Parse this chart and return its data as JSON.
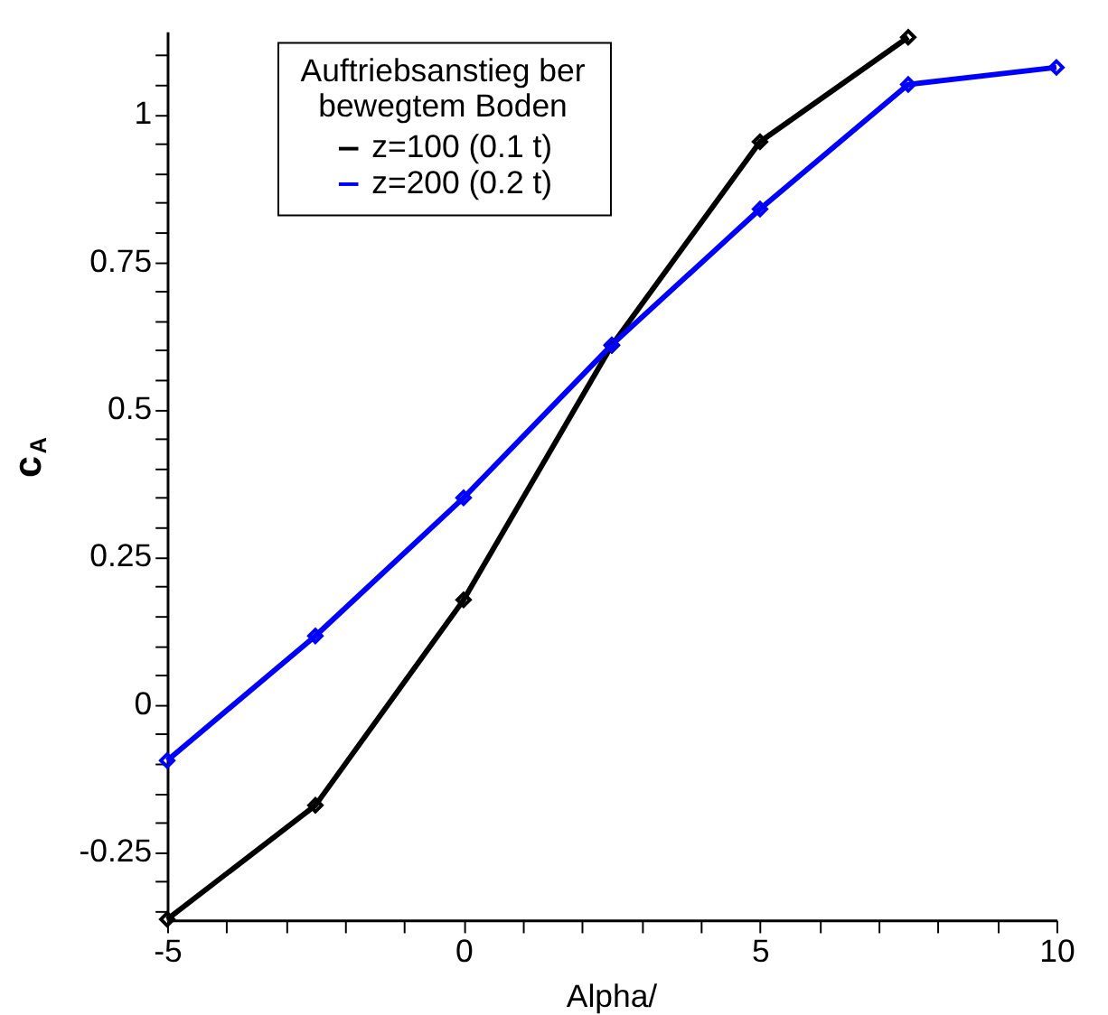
{
  "chart_data": {
    "type": "line",
    "xlabel": "Alpha/",
    "ylabel": "c$_{A}$",
    "legend_title": "Auftriebsanstieg   ber\nbewegtem Boden",
    "legend": "top",
    "marker": "diamond",
    "line_style": "solid",
    "grid": false,
    "x": [
      -5,
      -2.5,
      0,
      2.5,
      5,
      7.5,
      10
    ],
    "series": [
      {
        "name": "z=100 (0.1 t)",
        "color": "#000000",
        "values": [
          -0.364,
          -0.171,
          0.177,
          0.608,
          0.953,
          1.13,
          null
        ]
      },
      {
        "name": "z=200 (0.2 t)",
        "color": "#0000ff",
        "values": [
          -0.095,
          0.116,
          0.35,
          0.609,
          0.839,
          1.05,
          1.079
        ]
      }
    ],
    "xlim": [
      -5,
      10
    ],
    "xticks": [
      -5,
      {
        "value": -4,
        "label": null
      },
      {
        "value": -3,
        "label": null
      },
      {
        "value": -2,
        "label": null
      },
      {
        "value": -1,
        "label": null
      },
      0,
      {
        "value": 1,
        "label": null
      },
      {
        "value": 2,
        "label": null
      },
      {
        "value": 3,
        "label": null
      },
      {
        "value": 4,
        "label": null
      },
      5,
      {
        "value": 6,
        "label": null
      },
      {
        "value": 7,
        "label": null
      },
      {
        "value": 8,
        "label": null
      },
      {
        "value": 9,
        "label": null
      },
      10
    ],
    "ylim": [
      -0.365,
      1.14
    ],
    "yticks": [
      {
        "value": -0.35,
        "label": null
      },
      {
        "value": -0.3,
        "label": null
      },
      -0.25,
      {
        "value": -0.2,
        "label": null
      },
      {
        "value": -0.15,
        "label": null
      },
      {
        "value": -0.1,
        "label": null
      },
      {
        "value": -0.05,
        "label": null
      },
      0,
      {
        "value": 0.05,
        "label": null
      },
      {
        "value": 0.1,
        "label": null
      },
      {
        "value": 0.15,
        "label": null
      },
      {
        "value": 0.2,
        "label": null
      },
      0.25,
      {
        "value": 0.3,
        "label": null
      },
      {
        "value": 0.35,
        "label": null
      },
      {
        "value": 0.4,
        "label": null
      },
      {
        "value": 0.45,
        "label": null
      },
      0.5,
      {
        "value": 0.55,
        "label": null
      },
      {
        "value": 0.6,
        "label": null
      },
      {
        "value": 0.65,
        "label": null
      },
      {
        "value": 0.7,
        "label": null
      },
      0.75,
      {
        "value": 0.8,
        "label": null
      },
      {
        "value": 0.85,
        "label": null
      },
      {
        "value": 0.9,
        "label": null
      },
      {
        "value": 0.95,
        "label": null
      },
      1,
      {
        "value": 1.05,
        "label": null
      },
      {
        "value": 1.1,
        "label": null
      }
    ]
  }
}
